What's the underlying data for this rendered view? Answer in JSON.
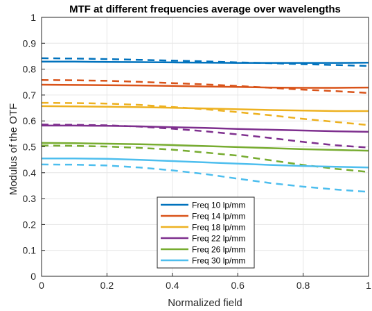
{
  "chart_data": {
    "type": "line",
    "title": "MTF at different frequencies average over wavelengths",
    "xlabel": "Normalized field",
    "ylabel": "Modulus of the OTF",
    "xlim": [
      0,
      1
    ],
    "ylim": [
      0,
      1
    ],
    "xticks": [
      "0",
      "0.2",
      "0.4",
      "0.6",
      "0.8",
      "1"
    ],
    "yticks": [
      "0",
      "0.1",
      "0.2",
      "0.3",
      "0.4",
      "0.5",
      "0.6",
      "0.7",
      "0.8",
      "0.9",
      "1"
    ],
    "grid": true,
    "legend_position": "bottom-center",
    "x": [
      0,
      0.1,
      0.2,
      0.3,
      0.4,
      0.5,
      0.6,
      0.7,
      0.8,
      0.9,
      1
    ],
    "series": [
      {
        "name": "Freq 10 lp/mm",
        "color": "#0072BD",
        "solid": [
          0.829,
          0.829,
          0.828,
          0.827,
          0.826,
          0.825,
          0.824,
          0.824,
          0.824,
          0.824,
          0.825
        ],
        "dashed": [
          0.842,
          0.841,
          0.839,
          0.836,
          0.833,
          0.83,
          0.826,
          0.823,
          0.819,
          0.816,
          0.812
        ]
      },
      {
        "name": "Freq 14 lp/mm",
        "color": "#D95319",
        "solid": [
          0.74,
          0.739,
          0.738,
          0.737,
          0.735,
          0.733,
          0.731,
          0.729,
          0.728,
          0.728,
          0.729
        ],
        "dashed": [
          0.758,
          0.757,
          0.755,
          0.751,
          0.746,
          0.741,
          0.735,
          0.728,
          0.721,
          0.715,
          0.708
        ]
      },
      {
        "name": "Freq 18 lp/mm",
        "color": "#EDB120",
        "solid": [
          0.657,
          0.656,
          0.655,
          0.653,
          0.651,
          0.648,
          0.645,
          0.642,
          0.64,
          0.638,
          0.638
        ],
        "dashed": [
          0.67,
          0.669,
          0.667,
          0.662,
          0.654,
          0.645,
          0.634,
          0.622,
          0.608,
          0.596,
          0.584
        ]
      },
      {
        "name": "Freq 22 lp/mm",
        "color": "#7E2F8E",
        "solid": [
          0.582,
          0.582,
          0.581,
          0.579,
          0.576,
          0.573,
          0.569,
          0.566,
          0.563,
          0.56,
          0.558
        ],
        "dashed": [
          0.586,
          0.585,
          0.583,
          0.578,
          0.57,
          0.56,
          0.548,
          0.534,
          0.519,
          0.506,
          0.497
        ]
      },
      {
        "name": "Freq 26 lp/mm",
        "color": "#77AC30",
        "solid": [
          0.515,
          0.514,
          0.512,
          0.51,
          0.507,
          0.503,
          0.499,
          0.495,
          0.491,
          0.488,
          0.485
        ],
        "dashed": [
          0.505,
          0.504,
          0.501,
          0.496,
          0.489,
          0.478,
          0.466,
          0.448,
          0.43,
          0.415,
          0.403
        ]
      },
      {
        "name": "Freq 30 lp/mm",
        "color": "#4DBEEE",
        "solid": [
          0.455,
          0.455,
          0.454,
          0.45,
          0.445,
          0.44,
          0.435,
          0.43,
          0.426,
          0.423,
          0.42
        ],
        "dashed": [
          0.432,
          0.431,
          0.428,
          0.42,
          0.409,
          0.395,
          0.377,
          0.36,
          0.346,
          0.335,
          0.326
        ]
      }
    ]
  }
}
